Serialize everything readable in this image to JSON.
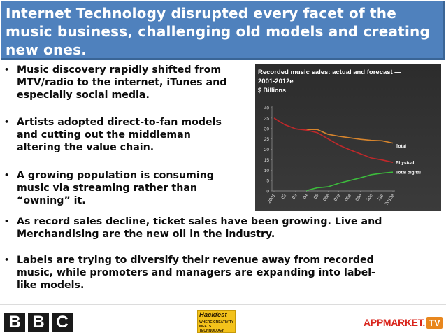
{
  "slide": {
    "title_lines": [
      "Internet Technology disrupted every facet of the",
      "music business, challenging old models and creating",
      "new ones."
    ],
    "bullet_glyph": "•",
    "bullets": [
      {
        "lines": [
          "Music discovery rapidly shifted from",
          "MTV/radio to the internet, iTunes and",
          "especially social media."
        ]
      },
      {
        "lines": [
          "Artists adopted direct-to-fan models",
          "and cutting out the middleman",
          "altering the value chain."
        ]
      },
      {
        "lines": [
          "A growing population is consuming",
          "music via streaming rather than",
          "“owning” it."
        ]
      },
      {
        "lines": [
          "As record sales decline, ticket sales have been growing. Live and",
          "Merchandising are the new oil in the industry."
        ]
      },
      {
        "lines": [
          "Labels are trying to diversify their revenue away from recorded",
          "music, while promoters and managers are expanding into label-",
          "like models."
        ]
      }
    ]
  },
  "footer": {
    "bbc_letters": [
      "B",
      "B",
      "C"
    ],
    "hackfest_title": "Hackfest",
    "hackfest_sub": "WHERE CREATIVITY MEETS TECHNOLOGY",
    "appmarket_text": "APPMARKET.",
    "appmarket_tv": "TV"
  },
  "colors": {
    "title_bg": "#4f81bd",
    "total": "#d7852d",
    "physical": "#c0282a",
    "digital": "#3cbc3c",
    "axis_text": "#d8d8d8"
  },
  "chart_data": {
    "type": "line",
    "title_lines": [
      "Recorded music sales: actual and forecast —",
      "2001-2012e"
    ],
    "ylabel": "$ Billions",
    "ylim": [
      0,
      40
    ],
    "yticks": [
      0,
      5,
      10,
      15,
      20,
      25,
      30,
      35,
      40
    ],
    "categories": [
      "2001",
      "02",
      "03",
      "04",
      "05",
      "06e",
      "07e",
      "08e",
      "09e",
      "10e",
      "11e",
      "2012e"
    ],
    "series": [
      {
        "name": "Total",
        "values": [
          null,
          null,
          null,
          29.5,
          29.5,
          27.2,
          26.3,
          25.5,
          24.8,
          24.3,
          24.1,
          23.0
        ]
      },
      {
        "name": "Physical",
        "values": [
          35.0,
          31.8,
          29.8,
          29.2,
          28.0,
          25.0,
          22.0,
          19.8,
          17.8,
          15.8,
          14.9,
          13.7
        ]
      },
      {
        "name": "Total digital",
        "values": [
          null,
          null,
          null,
          0.2,
          1.5,
          2.0,
          3.7,
          5.0,
          6.3,
          7.8,
          8.5,
          9.0
        ]
      }
    ],
    "legend_placement": "right-end-labels"
  }
}
